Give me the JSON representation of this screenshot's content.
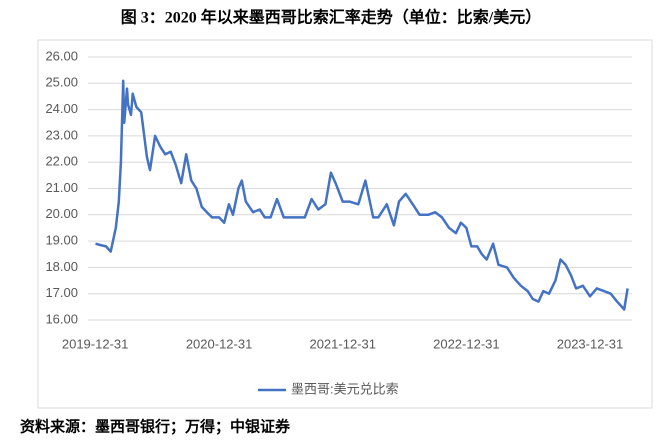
{
  "chart_data": {
    "type": "line",
    "title": "图 3：2020 年以来墨西哥比索汇率走势（单位：比索/美元）",
    "source": "资料来源：墨西哥银行；万得；中银证券",
    "x": [
      "2020-01-01",
      "2020-01-15",
      "2020-02-01",
      "2020-02-15",
      "2020-03-01",
      "2020-03-10",
      "2020-03-16",
      "2020-03-23",
      "2020-03-26",
      "2020-04-03",
      "2020-04-06",
      "2020-04-15",
      "2020-04-20",
      "2020-05-01",
      "2020-05-15",
      "2020-06-01",
      "2020-06-10",
      "2020-06-25",
      "2020-07-10",
      "2020-07-25",
      "2020-08-10",
      "2020-08-25",
      "2020-09-10",
      "2020-09-25",
      "2020-10-10",
      "2020-10-25",
      "2020-11-10",
      "2020-11-25",
      "2020-12-10",
      "2020-12-31",
      "2021-01-15",
      "2021-01-29",
      "2021-02-10",
      "2021-02-26",
      "2021-03-08",
      "2021-03-20",
      "2021-04-10",
      "2021-04-30",
      "2021-05-15",
      "2021-06-01",
      "2021-06-20",
      "2021-07-10",
      "2021-08-10",
      "2021-09-10",
      "2021-09-30",
      "2021-10-20",
      "2021-11-10",
      "2021-11-26",
      "2021-12-10",
      "2021-12-31",
      "2022-01-20",
      "2022-02-15",
      "2022-03-08",
      "2022-03-31",
      "2022-04-15",
      "2022-05-10",
      "2022-05-31",
      "2022-06-15",
      "2022-07-05",
      "2022-07-31",
      "2022-08-15",
      "2022-09-10",
      "2022-09-30",
      "2022-10-20",
      "2022-11-10",
      "2022-11-30",
      "2022-12-15",
      "2022-12-31",
      "2023-01-15",
      "2023-02-01",
      "2023-02-15",
      "2023-03-01",
      "2023-03-20",
      "2023-04-05",
      "2023-04-30",
      "2023-05-20",
      "2023-06-10",
      "2023-06-30",
      "2023-07-15",
      "2023-08-01",
      "2023-08-15",
      "2023-09-01",
      "2023-09-20",
      "2023-10-05",
      "2023-10-20",
      "2023-11-05",
      "2023-11-20",
      "2023-12-10",
      "2023-12-31",
      "2024-01-20",
      "2024-02-10",
      "2024-03-01",
      "2024-03-20",
      "2024-04-10",
      "2024-04-20"
    ],
    "series": [
      {
        "name": "墨西哥:美元兑比索",
        "color": "#4472c4",
        "values": [
          18.9,
          18.85,
          18.8,
          18.6,
          19.5,
          20.5,
          22.0,
          25.1,
          23.5,
          24.8,
          24.2,
          23.8,
          24.6,
          24.1,
          23.9,
          22.2,
          21.7,
          23.0,
          22.6,
          22.3,
          22.4,
          21.9,
          21.2,
          22.3,
          21.3,
          21.0,
          20.3,
          20.1,
          19.9,
          19.9,
          19.7,
          20.4,
          20.0,
          21.0,
          21.3,
          20.5,
          20.1,
          20.2,
          19.9,
          19.9,
          20.6,
          19.9,
          19.9,
          19.9,
          20.6,
          20.2,
          20.4,
          21.6,
          21.2,
          20.5,
          20.5,
          20.4,
          21.3,
          19.9,
          19.9,
          20.4,
          19.6,
          20.5,
          20.8,
          20.3,
          20.0,
          20.0,
          20.1,
          19.9,
          19.5,
          19.3,
          19.7,
          19.5,
          18.8,
          18.8,
          18.5,
          18.3,
          18.9,
          18.1,
          18.0,
          17.6,
          17.3,
          17.1,
          16.8,
          16.7,
          17.1,
          17.0,
          17.5,
          18.3,
          18.1,
          17.7,
          17.2,
          17.3,
          16.9,
          17.2,
          17.1,
          17.0,
          16.7,
          16.4,
          17.2
        ]
      }
    ],
    "xlim": [
      "2019-12-10",
      "2024-05-03"
    ],
    "xticks": [
      "2019-12-31",
      "2020-12-31",
      "2021-12-31",
      "2022-12-31",
      "2023-12-31"
    ],
    "ylim": [
      16,
      26
    ],
    "yticks": [
      {
        "value": 16,
        "label": "16.00"
      },
      {
        "value": 17,
        "label": "17.00"
      },
      {
        "value": 18,
        "label": "18.00"
      },
      {
        "value": 19,
        "label": "19.00"
      },
      {
        "value": 20,
        "label": "20.00"
      },
      {
        "value": 21,
        "label": "21.00"
      },
      {
        "value": 22,
        "label": "22.00"
      },
      {
        "value": 23,
        "label": "23.00"
      },
      {
        "value": 24,
        "label": "24.00"
      },
      {
        "value": 25,
        "label": "25.00"
      },
      {
        "value": 26,
        "label": "26.00"
      }
    ],
    "grid": true,
    "legend": "bottom"
  }
}
